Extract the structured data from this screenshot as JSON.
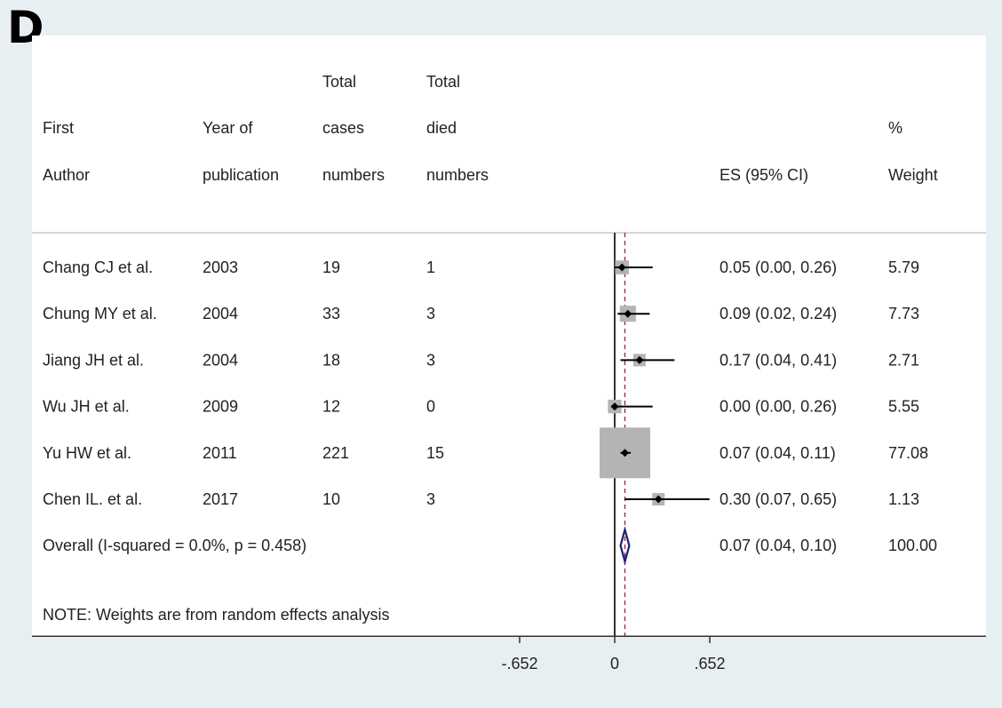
{
  "panel_label": "D",
  "colors": {
    "background": "#e8eff2",
    "panel": "#ffffff",
    "weight_box": "#b4b4b4",
    "point": "#000000",
    "ci_line": "#000000",
    "null_line": "#000000",
    "overall_line": "#a0284a",
    "diamond": "#1b1f7a"
  },
  "chart_data": {
    "type": "forest",
    "headers": {
      "author": [
        "First",
        "Author"
      ],
      "year": [
        "Year of",
        "publication"
      ],
      "cases": [
        "Total",
        "cases",
        "numbers"
      ],
      "died": [
        "Total",
        "died",
        "numbers"
      ],
      "es": [
        "ES (95% CI)"
      ],
      "weight": [
        "%",
        "Weight"
      ]
    },
    "studies": [
      {
        "author": "Chang CJ et al.",
        "year": "2003",
        "cases": "19",
        "died": "1",
        "es": 0.05,
        "lo": 0.0,
        "hi": 0.26,
        "es_text": "0.05 (0.00, 0.26)",
        "weight": 5.79,
        "weight_text": "5.79"
      },
      {
        "author": "Chung MY et al.",
        "year": "2004",
        "cases": "33",
        "died": "3",
        "es": 0.09,
        "lo": 0.02,
        "hi": 0.24,
        "es_text": "0.09 (0.02, 0.24)",
        "weight": 7.73,
        "weight_text": "7.73"
      },
      {
        "author": "Jiang JH et al.",
        "year": "2004",
        "cases": "18",
        "died": "3",
        "es": 0.17,
        "lo": 0.04,
        "hi": 0.41,
        "es_text": "0.17 (0.04, 0.41)",
        "weight": 2.71,
        "weight_text": "2.71"
      },
      {
        "author": "Wu JH et al.",
        "year": "2009",
        "cases": "12",
        "died": "0",
        "es": 0.0,
        "lo": 0.0,
        "hi": 0.26,
        "es_text": "0.00 (0.00, 0.26)",
        "weight": 5.55,
        "weight_text": "5.55"
      },
      {
        "author": "Yu HW et al.",
        "year": "2011",
        "cases": "221",
        "died": "15",
        "es": 0.07,
        "lo": 0.04,
        "hi": 0.11,
        "es_text": "0.07 (0.04, 0.11)",
        "weight": 77.08,
        "weight_text": "77.08"
      },
      {
        "author": "Chen IL. et al.",
        "year": "2017",
        "cases": "10",
        "died": "3",
        "es": 0.3,
        "lo": 0.07,
        "hi": 0.65,
        "es_text": "0.30 (0.07, 0.65)",
        "weight": 1.13,
        "weight_text": "1.13"
      }
    ],
    "overall": {
      "label": "Overall  (I-squared = 0.0%, p = 0.458)",
      "es": 0.07,
      "lo": 0.04,
      "hi": 0.1,
      "es_text": "0.07 (0.04, 0.10)",
      "weight_text": "100.00"
    },
    "note": "NOTE: Weights are from random effects analysis",
    "x_ticks": [
      {
        "value": -0.652,
        "label": "-.652"
      },
      {
        "value": 0,
        "label": "0"
      },
      {
        "value": 0.652,
        "label": ".652"
      }
    ],
    "null_value": 0
  }
}
